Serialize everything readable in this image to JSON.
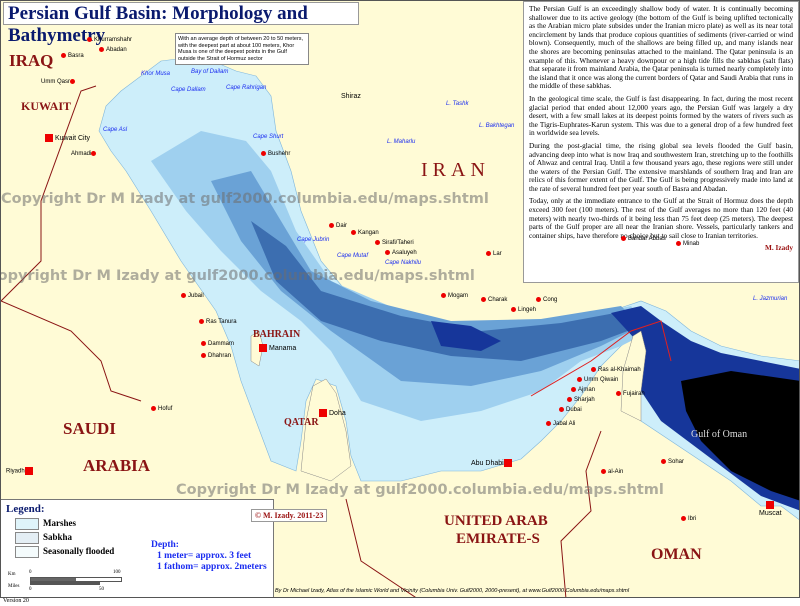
{
  "title": "Persian Gulf Basin: Morphology and Bathymetry",
  "note": "With an average depth of between 20 to 50 meters, with the deepest part at about 100 meters, Khor Musa is one of the deepest points in the Gulf outside the Strait of Hormuz sector",
  "panel": {
    "paragraphs": [
      "The Persian Gulf is an exceedingly shallow body of water. It is continually becoming shallower due to its active geology (the bottom of the Gulf is being uplifted tectonically as the Arabian micro plate subsides under the Iranian micro plate) as well as its near total encirclement by lands that produce copious quantities of sediments (river-carried or wind blown). Consequently, much of the shallows are being filled up, and many islands near the shores are becoming peninsulas attached to the mainland. The Qatar peninsula is an example of this. Whenever a heavy downpour or a high tide fills the sabkhas (salt flats) that separate it from mainland Arabia, the Qatar peninsula is turned nearly completely into the island that it once was along the current borders of Qatar and Saudi Arabia that runs in the middle of these sabkhas.",
      "In the geological time scale, the Gulf is fast disappearing. In fact, during the most recent glacial period that ended about 12,000 years ago, the Persian Gulf was largely a dry desert, with a few small lakes at its deepest points formed by the waters of rivers such as the Tigris-Euphrates-Karun system. This was due to a general drop of a few hundred feet in worldwide sea levels.",
      "During the post-glacial time, the rising global sea levels flooded the Gulf basin, advancing deep into what is now Iraq and southwestern Iran, stretching up to the foothills of Ahwaz and central Iraq. Until a few thousand years ago, these regions were still under the waters of the Persian Gulf. The extensive marshlands of southern Iraq and Iran are relics of this former extent of the Gulf. The Gulf is being progressively made into land at the rate of several hundred feet per year south of Basra and Abadan.",
      "Today, only at the immediate entrance to the Gulf at the Strait of Hormuz does the depth exceed 300 feet (100 meters). The rest of the Gulf averages no more than 120 feet (40 meters) with nearly two-thirds of it being less than 75 feet deep (25 meters). The deepest parts of the Gulf proper are all near the Iranian shore. Vessels, particularly tankers and container ships, have therefore no choice but to sail close to Iranian territories."
    ],
    "signature": "M. Izady"
  },
  "countries": {
    "iraq": "IRAQ",
    "kuwait": "KUWAIT",
    "iran": "IRAN",
    "saudi1": "SAUDI",
    "saudi2": "ARABIA",
    "bahrain": "BAHRAIN",
    "qatar": "QATAR",
    "uae1": "UNITED ARAB",
    "uae2": "EMIRATE-S",
    "oman": "OMAN"
  },
  "sea_label": "Gulf of Oman",
  "cities": [
    {
      "name": "Basra"
    },
    {
      "name": "Khurramshahr"
    },
    {
      "name": "Abadan"
    },
    {
      "name": "Umm Qasr"
    },
    {
      "name": "Kuwait City",
      "capital": true
    },
    {
      "name": "Ahmadi"
    },
    {
      "name": "Bushehr"
    },
    {
      "name": "Shiraz"
    },
    {
      "name": "Dair"
    },
    {
      "name": "Kangan"
    },
    {
      "name": "Sirafi/Taheri"
    },
    {
      "name": "Asaluyeh"
    },
    {
      "name": "Lar"
    },
    {
      "name": "Mogam"
    },
    {
      "name": "Charak"
    },
    {
      "name": "Lingeh"
    },
    {
      "name": "Cong"
    },
    {
      "name": "Bandar Abbas"
    },
    {
      "name": "Minab"
    },
    {
      "name": "Manama",
      "capital": true
    },
    {
      "name": "Doha",
      "capital": true
    },
    {
      "name": "Abu Dhabi",
      "capital": true
    },
    {
      "name": "Dubai"
    },
    {
      "name": "Sharjah"
    },
    {
      "name": "Ajman"
    },
    {
      "name": "Umm Qiwain"
    },
    {
      "name": "Ras al-Khaimah"
    },
    {
      "name": "Jabal Ali"
    },
    {
      "name": "Fujairah"
    },
    {
      "name": "al-Ain"
    },
    {
      "name": "Sohar"
    },
    {
      "name": "Muscat",
      "capital": true
    },
    {
      "name": "Ibri"
    },
    {
      "name": "Hofuf"
    },
    {
      "name": "Riyadh",
      "capital": true
    },
    {
      "name": "Dammam"
    },
    {
      "name": "Dhahran"
    },
    {
      "name": "Jubail"
    },
    {
      "name": "Ras Tanura"
    }
  ],
  "capes": [
    "Cape Asl",
    "Khor Musa",
    "Cape Dallam",
    "Bay of Dailam",
    "Cape Rahrigan",
    "Cape Shurt",
    "Cape Jubrin",
    "Cape Mutaf",
    "Cape Nakhilu",
    "L. Maharlu",
    "L. Bakhtegan",
    "L. Tashk",
    "L. Jazmurian"
  ],
  "legend": {
    "title": "Legend:",
    "items": [
      {
        "label": "Marshes",
        "color": "#dff4fa"
      },
      {
        "label": "Sabkha",
        "color": "#e4eef4"
      },
      {
        "label": "Seasonally flooded",
        "color": "#f4fbfc"
      }
    ],
    "depth_title": "Depth:",
    "depth_lines": [
      "1 meter= approx. 3 feet",
      "1 fathom= approx. 2meters"
    ],
    "scale": {
      "km_label": "Km",
      "miles_label": "Miles",
      "km_ticks": [
        "0",
        "100"
      ],
      "mile_ticks": [
        "0",
        "50"
      ]
    }
  },
  "copyright": "© M. Izady. 2011-23",
  "credit": "By Dr Michael Izady, Atlas of the Islamic World and Vicinity (Columbia Univ. Gulf2000, 2000-present), at www.Gulf2000.Columbia.edu/maps.shtml",
  "version": "Version 20",
  "watermarks": [
    "Copyright Dr M Izady at gulf2000.columbia.edu/maps.shtml"
  ],
  "colors": {
    "land": "#fffbd6",
    "shallow": "#cdeefa",
    "mid": "#9fd0ef",
    "deep": "#6aa2d6",
    "deeper": "#3c6eb0",
    "deepest": "#16369a",
    "abyss": "#000000",
    "border": "#8a1414"
  }
}
